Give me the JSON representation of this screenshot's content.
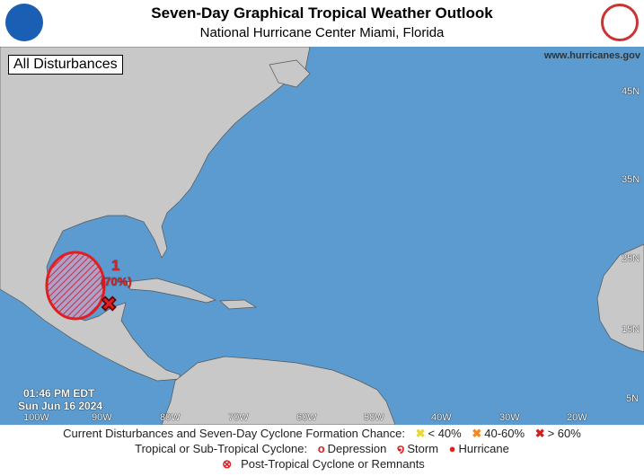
{
  "header": {
    "title": "Seven-Day Graphical Tropical Weather Outlook",
    "subtitle": "National Hurricane Center  Miami, Florida",
    "left_logo": "NOAA",
    "right_logo": "National Weather Service"
  },
  "map": {
    "view_label": "All Disturbances",
    "website": "www.hurricanes.gov",
    "timestamp_time": "01:46 PM EDT",
    "timestamp_date": "Sun Jun 16 2024",
    "longitude_labels": [
      "100W",
      "90W",
      "80W",
      "70W",
      "60W",
      "50W",
      "40W",
      "30W",
      "20W"
    ],
    "latitude_labels": [
      "45N",
      "35N",
      "25N",
      "15N",
      "5N"
    ],
    "disturbances": [
      {
        "id": "1",
        "chance": "(70%)",
        "category": "> 60%",
        "color": "#e02020"
      }
    ],
    "colors": {
      "ocean": "#5b9bd0",
      "land": "#c8c8c8",
      "high": "#e02020",
      "medium": "#f08a20",
      "low": "#f0e040"
    }
  },
  "legend": {
    "line1_label": "Current Disturbances and Seven-Day Cyclone Formation Chance:",
    "low": "< 40%",
    "medium": "40-60%",
    "high": "> 60%",
    "line2_label": "Tropical or Sub-Tropical Cyclone:",
    "depression": "Depression",
    "storm": "Storm",
    "hurricane": "Hurricane",
    "post_tropical": "Post-Tropical Cyclone or Remnants"
  }
}
